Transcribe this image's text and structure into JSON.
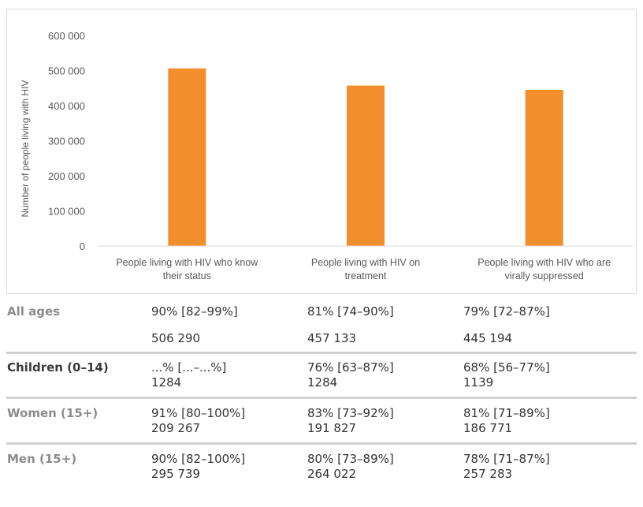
{
  "chart_data": {
    "type": "bar",
    "ylabel": "Number of people living with HIV",
    "ylim": [
      0,
      600000
    ],
    "yticks": [
      0,
      100000,
      200000,
      300000,
      400000,
      500000,
      600000
    ],
    "ytick_labels": [
      "0",
      "100 000",
      "200 000",
      "300 000",
      "400 000",
      "500 000",
      "600 000"
    ],
    "categories": [
      [
        "People living with HIV who know",
        "their status"
      ],
      [
        "People living with HIV on",
        "treatment"
      ],
      [
        "People living with HIV who are",
        "virally suppressed"
      ]
    ],
    "values": [
      506290,
      457133,
      445194
    ],
    "bar_color": "#f28e2b",
    "grid": false
  },
  "table": {
    "rows": [
      {
        "label": "All ages",
        "label_color": "#8c8c8c",
        "pct": [
          "90% [82–99%]",
          "81% [74–90%]",
          "79% [72–87%]"
        ],
        "num": [
          "506 290",
          "457 133",
          "445 194"
        ]
      },
      {
        "label": "Children (0–14)",
        "label_color": "#3a3a3a",
        "pct": [
          "...% [...–...%]",
          "76% [63–87%]",
          "68% [56–77%]"
        ],
        "num": [
          "1284",
          "1284",
          "1139"
        ]
      },
      {
        "label": "Women (15+)",
        "label_color": "#8c8c8c",
        "pct": [
          "91% [80–100%]",
          "83% [73–92%]",
          "81% [71–89%]"
        ],
        "num": [
          "209 267",
          "191 827",
          "186 771"
        ]
      },
      {
        "label": "Men (15+)",
        "label_color": "#8c8c8c",
        "pct": [
          "90% [82–100%]",
          "80% [73–89%]",
          "78% [71–87%]"
        ],
        "num": [
          "295 739",
          "264 022",
          "257 283"
        ]
      }
    ]
  }
}
